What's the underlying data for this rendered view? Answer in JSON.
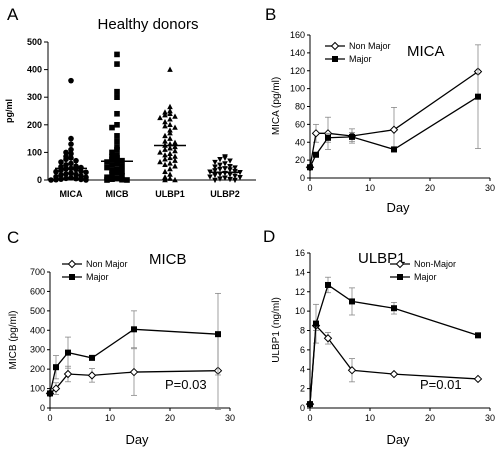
{
  "chart_data": [
    {
      "panel": "A",
      "type": "scatter",
      "title": "Healthy donors",
      "ylabel": "pg/ml",
      "ylim": [
        0,
        500
      ],
      "yticks": [
        0,
        100,
        200,
        300,
        400,
        500
      ],
      "categories": [
        "MICA",
        "MICB",
        "ULBP1",
        "ULBP2"
      ],
      "markers": [
        "circle",
        "square",
        "triangle",
        "triangle-down"
      ],
      "means": [
        42,
        68,
        125,
        28
      ],
      "points": [
        [
          360,
          150,
          130,
          110,
          100,
          95,
          85,
          80,
          75,
          70,
          65,
          60,
          55,
          50,
          48,
          45,
          42,
          40,
          38,
          35,
          32,
          30,
          28,
          25,
          22,
          20,
          18,
          15,
          12,
          10,
          8,
          6,
          5,
          3,
          2,
          1,
          0,
          0
        ],
        [
          455,
          420,
          320,
          300,
          240,
          200,
          190,
          160,
          140,
          120,
          110,
          100,
          90,
          85,
          80,
          75,
          70,
          65,
          60,
          55,
          50,
          45,
          40,
          35,
          30,
          25,
          20,
          15,
          10,
          5,
          3,
          1,
          0,
          0
        ],
        [
          400,
          265,
          250,
          245,
          240,
          235,
          230,
          225,
          220,
          210,
          200,
          195,
          190,
          180,
          170,
          160,
          150,
          140,
          135,
          130,
          125,
          120,
          115,
          110,
          105,
          100,
          95,
          90,
          85,
          80,
          75,
          70,
          65,
          60,
          55,
          50,
          40,
          30,
          20,
          10,
          5,
          0,
          0
        ],
        [
          85,
          80,
          75,
          70,
          65,
          60,
          55,
          50,
          48,
          45,
          42,
          40,
          38,
          35,
          32,
          30,
          28,
          25,
          22,
          20,
          18,
          15,
          12,
          10,
          8,
          5,
          3,
          0,
          0
        ]
      ]
    },
    {
      "panel": "B",
      "type": "line",
      "title": "MICA",
      "xlabel": "Day",
      "ylabel": "MICA (pg/ml)",
      "xlim": [
        0,
        30
      ],
      "ylim": [
        0,
        160
      ],
      "xticks": [
        0,
        10,
        20,
        30
      ],
      "yticks": [
        0,
        20,
        40,
        60,
        80,
        100,
        120,
        140,
        160
      ],
      "legend_position": "top-left",
      "series": [
        {
          "name": "Non Major",
          "marker": "diamond-open",
          "x": [
            0,
            1,
            3,
            7,
            14,
            28
          ],
          "y": [
            12,
            50,
            50,
            47,
            54,
            119
          ],
          "err": [
            0,
            10,
            18,
            8,
            25,
            0
          ]
        },
        {
          "name": "Major",
          "marker": "square",
          "x": [
            0,
            1,
            3,
            7,
            14,
            28
          ],
          "y": [
            12,
            26,
            45,
            46,
            32,
            91
          ],
          "err": [
            0,
            0,
            5,
            5,
            0,
            58
          ]
        }
      ],
      "annotation": ""
    },
    {
      "panel": "C",
      "type": "line",
      "title": "MICB",
      "xlabel": "Day",
      "ylabel": "MICB (pg/ml)",
      "xlim": [
        0,
        30
      ],
      "ylim": [
        0,
        700
      ],
      "xticks": [
        0,
        10,
        20,
        30
      ],
      "yticks": [
        0,
        100,
        200,
        300,
        400,
        500,
        600,
        700
      ],
      "legend_position": "top-left",
      "series": [
        {
          "name": "Non Major",
          "marker": "diamond-open",
          "x": [
            0,
            1,
            3,
            7,
            14,
            28
          ],
          "y": [
            75,
            100,
            175,
            168,
            185,
            192
          ],
          "err": [
            0,
            30,
            40,
            35,
            120,
            200
          ]
        },
        {
          "name": "Major",
          "marker": "square",
          "x": [
            0,
            1,
            3,
            7,
            14,
            28
          ],
          "y": [
            75,
            210,
            285,
            258,
            405,
            380
          ],
          "err": [
            0,
            60,
            80,
            0,
            95,
            210
          ]
        }
      ],
      "annotation": "P=0.03"
    },
    {
      "panel": "D",
      "type": "line",
      "title": "ULBP1",
      "xlabel": "Day",
      "ylabel": "ULBP1 (ng/ml)",
      "xlim": [
        0,
        30
      ],
      "ylim": [
        0,
        16
      ],
      "xticks": [
        0,
        10,
        20,
        30
      ],
      "yticks": [
        0,
        2,
        4,
        6,
        8,
        10,
        12,
        14,
        16
      ],
      "legend_position": "top-right",
      "series": [
        {
          "name": "Non-Major",
          "marker": "diamond-open",
          "x": [
            0,
            1,
            3,
            7,
            14,
            28
          ],
          "y": [
            0.4,
            8.5,
            7.2,
            3.9,
            3.5,
            3.0
          ],
          "err": [
            0,
            0.5,
            0.6,
            1.2,
            0,
            0
          ]
        },
        {
          "name": "Major",
          "marker": "square",
          "x": [
            0,
            1,
            3,
            7,
            14,
            28
          ],
          "y": [
            0.4,
            8.7,
            12.7,
            11.0,
            10.3,
            7.5
          ],
          "err": [
            0,
            2.0,
            0.8,
            1.4,
            0.6,
            0
          ]
        }
      ],
      "annotation": "P=0.01"
    }
  ]
}
